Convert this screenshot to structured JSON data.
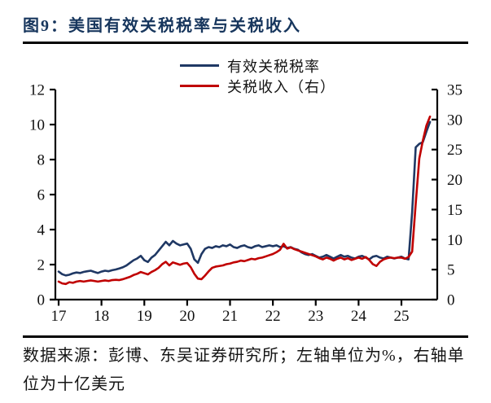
{
  "title": "图9：美国有效关税税率与关税收入",
  "legend": [
    {
      "label": "有效关税税率",
      "color": "#1f3864"
    },
    {
      "label": "关税收入（右）",
      "color": "#c00000"
    }
  ],
  "footer": "数据来源：彭博、东吴证券研究所；左轴单位为%，右轴单位为十亿美元",
  "chart_data": {
    "type": "line",
    "title": "美国有效关税税率与关税收入",
    "x_start": "2017-01",
    "x_frequency": "monthly",
    "x_tick_labels": [
      "17",
      "18",
      "19",
      "20",
      "21",
      "22",
      "23",
      "24",
      "25"
    ],
    "grid": false,
    "legend_position": "top-center",
    "left_axis": {
      "unit": "%",
      "min": 0,
      "max": 12,
      "ticks": [
        0,
        2,
        4,
        6,
        8,
        10,
        12
      ]
    },
    "right_axis": {
      "unit": "十亿美元",
      "min": 0,
      "max": 35,
      "ticks": [
        0,
        5,
        10,
        15,
        20,
        25,
        30,
        35
      ]
    },
    "series": [
      {
        "name": "有效关税税率",
        "axis": "left",
        "color": "#1f3864",
        "values": [
          1.6,
          1.45,
          1.38,
          1.42,
          1.5,
          1.55,
          1.52,
          1.58,
          1.62,
          1.65,
          1.58,
          1.52,
          1.6,
          1.65,
          1.62,
          1.68,
          1.72,
          1.78,
          1.85,
          1.95,
          2.1,
          2.25,
          2.35,
          2.5,
          2.25,
          2.15,
          2.4,
          2.55,
          2.8,
          3.05,
          3.3,
          3.1,
          3.35,
          3.2,
          3.1,
          3.15,
          3.2,
          2.9,
          2.3,
          2.1,
          2.6,
          2.9,
          3.0,
          2.95,
          3.05,
          3.0,
          3.1,
          3.05,
          3.15,
          3.0,
          2.95,
          3.05,
          3.1,
          3.0,
          2.95,
          3.05,
          3.1,
          3.0,
          3.05,
          3.1,
          3.05,
          3.1,
          3.0,
          3.05,
          2.95,
          3.0,
          2.9,
          2.85,
          2.7,
          2.6,
          2.55,
          2.6,
          2.5,
          2.4,
          2.45,
          2.55,
          2.45,
          2.35,
          2.45,
          2.55,
          2.45,
          2.5,
          2.4,
          2.35,
          2.45,
          2.5,
          2.4,
          2.3,
          2.45,
          2.5,
          2.4,
          2.35,
          2.45,
          2.4,
          2.35,
          2.4,
          2.45,
          2.35,
          2.3,
          5.0,
          8.7,
          8.9,
          9.0,
          9.6,
          10.15
        ]
      },
      {
        "name": "关税收入（右）",
        "axis": "right",
        "color": "#c00000",
        "values": [
          3.0,
          2.7,
          2.6,
          2.9,
          2.8,
          3.0,
          3.1,
          3.0,
          3.1,
          3.2,
          3.1,
          3.0,
          3.1,
          3.2,
          3.1,
          3.25,
          3.3,
          3.25,
          3.4,
          3.6,
          3.8,
          4.1,
          4.3,
          4.6,
          4.4,
          4.2,
          4.6,
          4.9,
          5.3,
          5.9,
          6.3,
          5.7,
          6.2,
          6.0,
          5.8,
          6.0,
          6.1,
          5.4,
          4.3,
          3.5,
          3.4,
          4.0,
          4.7,
          5.3,
          5.5,
          5.6,
          5.7,
          5.9,
          6.0,
          6.2,
          6.3,
          6.5,
          6.4,
          6.6,
          6.8,
          6.7,
          6.9,
          7.0,
          7.2,
          7.4,
          7.6,
          7.9,
          8.3,
          9.3,
          8.5,
          8.7,
          8.4,
          8.2,
          8.0,
          7.8,
          7.6,
          7.4,
          7.2,
          6.9,
          6.7,
          7.0,
          6.8,
          6.5,
          6.8,
          7.0,
          6.7,
          6.9,
          6.6,
          6.8,
          7.0,
          6.8,
          7.1,
          6.6,
          5.9,
          5.6,
          6.3,
          6.7,
          6.9,
          7.0,
          6.9,
          7.0,
          7.0,
          6.8,
          7.1,
          8.0,
          16.0,
          23.5,
          26.5,
          29.0,
          30.5
        ]
      }
    ]
  }
}
